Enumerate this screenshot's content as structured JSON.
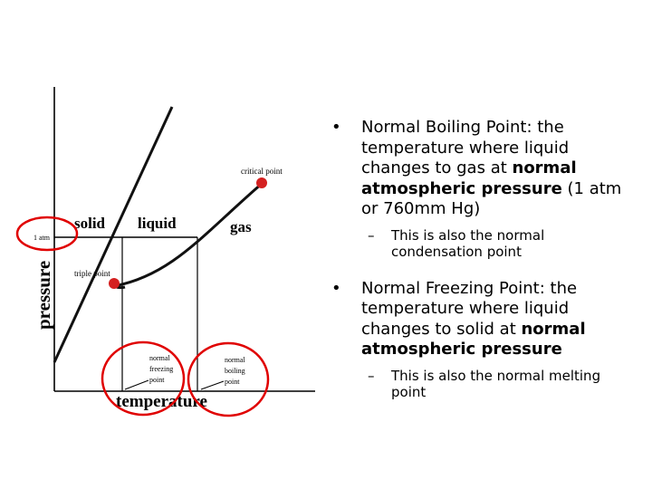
{
  "diagram": {
    "axis_label_y": "pressure",
    "axis_label_x": "temperature",
    "region_solid": "solid",
    "region_liquid": "liquid",
    "region_gas": "gas",
    "critical_point": "critical point",
    "triple_point": "triple point",
    "one_atm": "1 atm",
    "normal_freezing_point": [
      "normal",
      "freezing",
      "point"
    ],
    "normal_boiling_point": [
      "normal",
      "boiling",
      "point"
    ],
    "curve_color": "#111111",
    "highlight_color": "#e00000",
    "point_color": "#d42020"
  },
  "bullets": [
    {
      "parts": [
        {
          "text": "Normal Boiling Point: the temperature where liquid changes to gas at ",
          "bold": false
        },
        {
          "text": "normal atmospheric pressure",
          "bold": true
        },
        {
          "text": " (1 atm or 760mm Hg)",
          "bold": false
        }
      ],
      "sub": "This is also the normal condensation point"
    },
    {
      "parts": [
        {
          "text": "Normal Freezing Point: the temperature where liquid changes to solid at ",
          "bold": false
        },
        {
          "text": "normal atmospheric pressure",
          "bold": true
        }
      ],
      "sub": "This is also the normal melting point"
    }
  ]
}
